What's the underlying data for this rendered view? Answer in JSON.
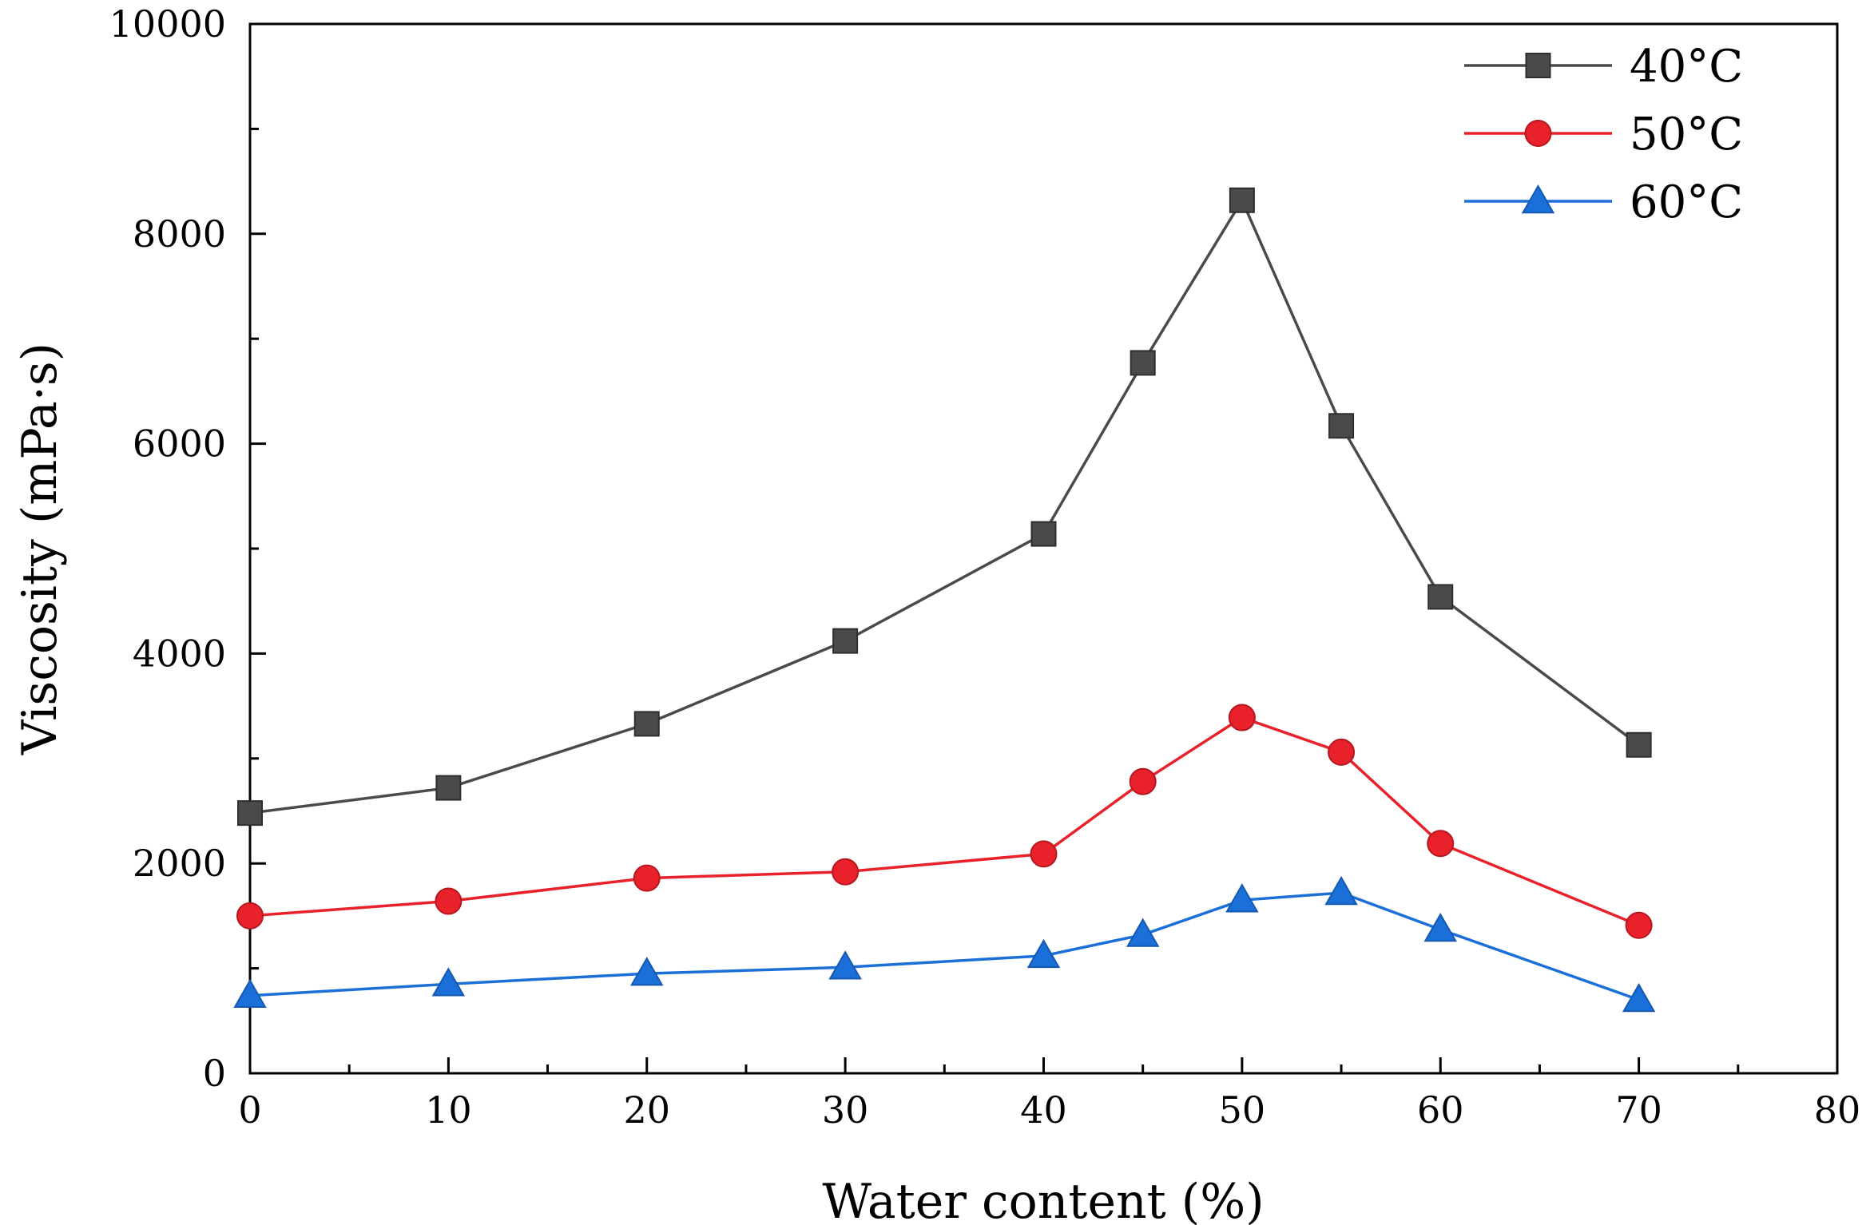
{
  "chart_data": {
    "type": "line",
    "title": "",
    "xlabel": "Water content (%)",
    "ylabel": "Viscosity (mPa·s)",
    "xlim": [
      0,
      80
    ],
    "ylim": [
      0,
      10000
    ],
    "x_ticks": [
      0,
      10,
      20,
      30,
      40,
      50,
      60,
      70,
      80
    ],
    "y_ticks": [
      0,
      2000,
      4000,
      6000,
      8000,
      10000
    ],
    "grid": false,
    "legend_position": "top-right",
    "x": [
      0,
      10,
      20,
      30,
      40,
      45,
      50,
      55,
      60,
      70
    ],
    "series": [
      {
        "name": "40°C",
        "color": "#4a4a4a",
        "marker": "square",
        "values": [
          2480,
          2720,
          3330,
          4120,
          5140,
          6770,
          8320,
          6170,
          4540,
          3130
        ]
      },
      {
        "name": "50°C",
        "color": "#e8212a",
        "marker": "circle",
        "values": [
          1500,
          1640,
          1860,
          1920,
          2090,
          2780,
          3390,
          3060,
          2190,
          1410
        ]
      },
      {
        "name": "60°C",
        "color": "#1a6fd8",
        "marker": "triangle",
        "values": [
          740,
          850,
          950,
          1010,
          1120,
          1320,
          1650,
          1720,
          1370,
          700
        ]
      }
    ]
  }
}
